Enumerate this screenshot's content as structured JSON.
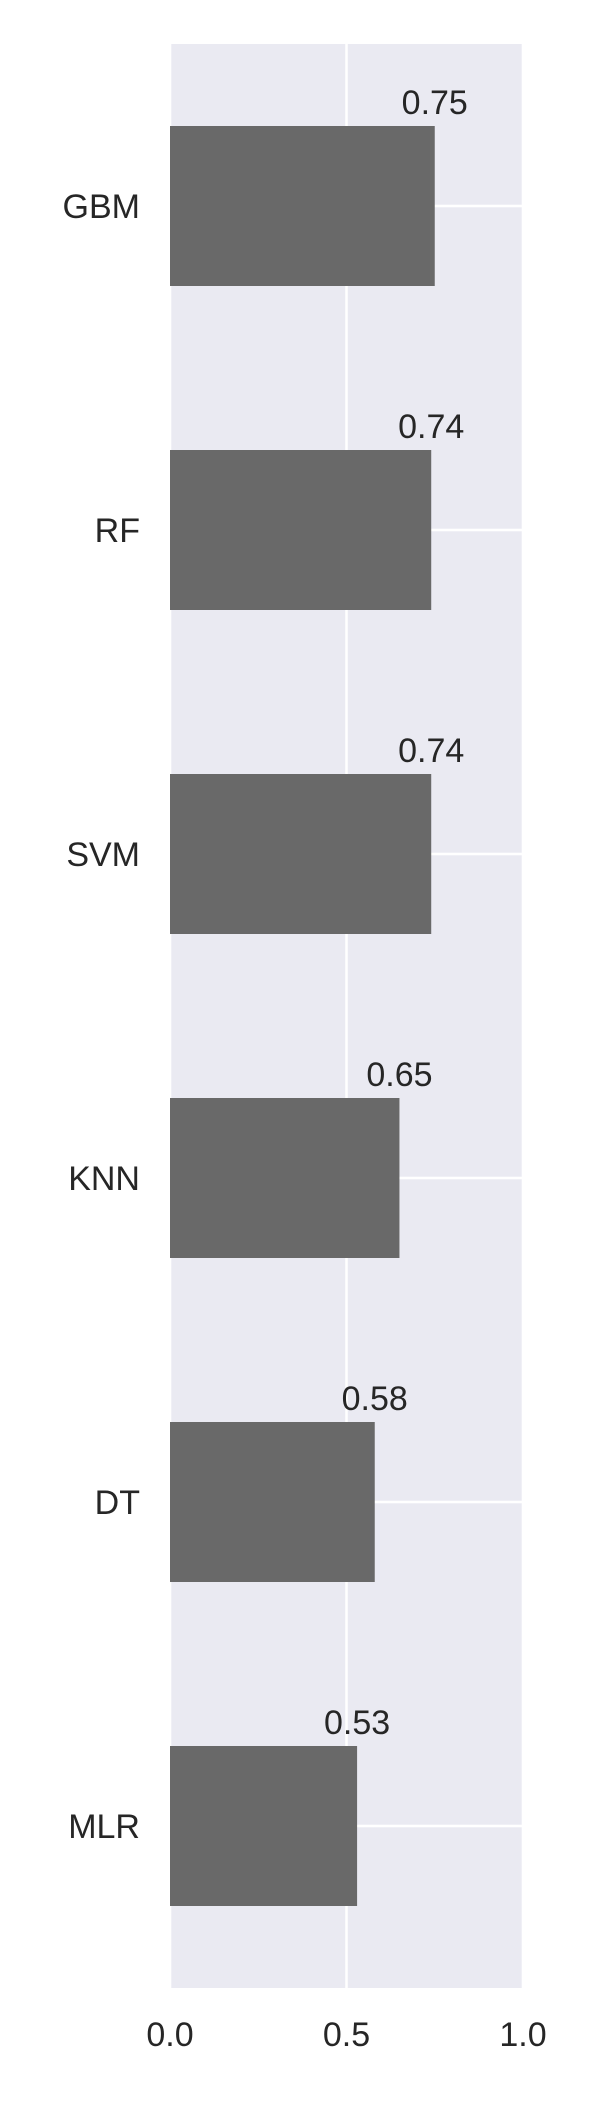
{
  "chart_data": {
    "type": "bar",
    "orientation": "horizontal",
    "categories": [
      "GBM",
      "RF",
      "SVM",
      "KNN",
      "DT",
      "MLR"
    ],
    "values": [
      0.75,
      0.74,
      0.74,
      0.65,
      0.58,
      0.53
    ],
    "data_labels": [
      "0.75",
      "0.74",
      "0.74",
      "0.65",
      "0.58",
      "0.53"
    ],
    "x_ticks": [
      0.0,
      0.5,
      1.0
    ],
    "x_tick_labels": [
      "0.0",
      "0.5",
      "1.0"
    ],
    "xlim": [
      0,
      1
    ],
    "title": "",
    "xlabel": "",
    "ylabel": "",
    "grid": true,
    "colors": {
      "background": "#eaeaf2",
      "bar": "#696969",
      "grid": "#ffffff",
      "text": "#262626"
    }
  }
}
